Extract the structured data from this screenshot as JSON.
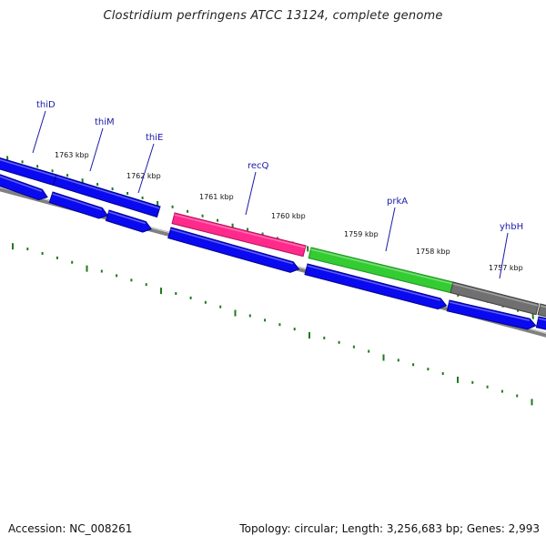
{
  "header": {
    "title": "Clostridium perfringens ATCC 13124, complete genome"
  },
  "footer": {
    "accession": "Accession: NC_008261",
    "summary": "Topology: circular; Length: 3,256,683 bp; Genes: 2,993"
  },
  "colors": {
    "cds": "#0a0af0",
    "cds_dark": "#00008c",
    "rna": "#ff2a8c",
    "category_green": "#33cc33",
    "category_gray": "#707070",
    "backbone": "#808080",
    "ticks": "#1e7a1e",
    "label_line": "#1a1aa8"
  },
  "genes": [
    {
      "name": "thiD"
    },
    {
      "name": "thiM"
    },
    {
      "name": "thiE"
    },
    {
      "name": "recQ"
    },
    {
      "name": "prkA"
    },
    {
      "name": "yhbH"
    }
  ],
  "scale": {
    "labels": [
      "1763 kbp",
      "1762 kbp",
      "1761 kbp",
      "1760 kbp",
      "1759 kbp",
      "1758 kbp",
      "1757 kbp"
    ]
  }
}
